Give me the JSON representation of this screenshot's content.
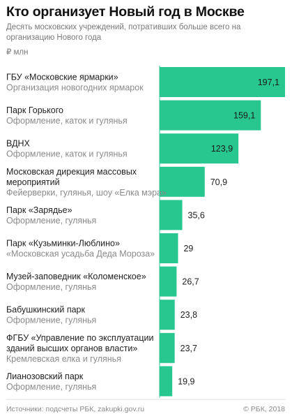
{
  "header": {
    "title": "Кто организует Новый год в Москве",
    "subtitle": "Десять московских учреждений, потративших больше всего на организацию Нового года",
    "unit": "₽ млн"
  },
  "footer": {
    "source": "Источники: подсчеты РБК, zakupki.gov.ru",
    "copyright": "© РБК, 2018"
  },
  "colors": {
    "bar": "#27c78f"
  },
  "chart_data": {
    "type": "bar",
    "orientation": "horizontal",
    "title": "Кто организует Новый год в Москве",
    "unit": "₽ млн",
    "xlim": [
      0,
      197.1
    ],
    "grid": false,
    "categories": [
      {
        "name": [
          "ГБУ «Московские ярмарки»"
        ],
        "desc": [
          "Организация новогодних ярмарок"
        ],
        "value": 197.1,
        "label": "197,1"
      },
      {
        "name": [
          "Парк Горького"
        ],
        "desc": [
          "Оформление, каток и гулянья"
        ],
        "value": 159.1,
        "label": "159,1"
      },
      {
        "name": [
          "ВДНХ"
        ],
        "desc": [
          "Оформление, каток и гулянья"
        ],
        "value": 123.9,
        "label": "123,9"
      },
      {
        "name": [
          "Московская дирекция массовых",
          "мероприятий"
        ],
        "desc": [
          "Фейерверки, гулянья, шоу «Елка мэра»"
        ],
        "value": 70.9,
        "label": "70,9"
      },
      {
        "name": [
          "Парк «Зарядье»"
        ],
        "desc": [
          "Оформление, гулянья"
        ],
        "value": 35.6,
        "label": "35,6"
      },
      {
        "name": [
          "Парк «Кузьминки-Люблино»"
        ],
        "desc": [
          "«Московская усадьба Деда Мороза»"
        ],
        "value": 29,
        "label": "29"
      },
      {
        "name": [
          "Музей-заповедник «Коломенское»"
        ],
        "desc": [
          "Оформление, гулянья"
        ],
        "value": 26.7,
        "label": "26,7"
      },
      {
        "name": [
          "Бабушкинский парк"
        ],
        "desc": [
          "Оформление, гулянья"
        ],
        "value": 23.8,
        "label": "23,8"
      },
      {
        "name": [
          "ФГБУ «Управление по эксплуатации",
          "зданий высших органов власти»"
        ],
        "desc": [
          "Кремлевская елка и гулянья"
        ],
        "value": 23.7,
        "label": "23,7"
      },
      {
        "name": [
          "Лианозовский парк"
        ],
        "desc": [
          "Оформление, гулянья"
        ],
        "value": 19.9,
        "label": "19,9"
      }
    ]
  }
}
